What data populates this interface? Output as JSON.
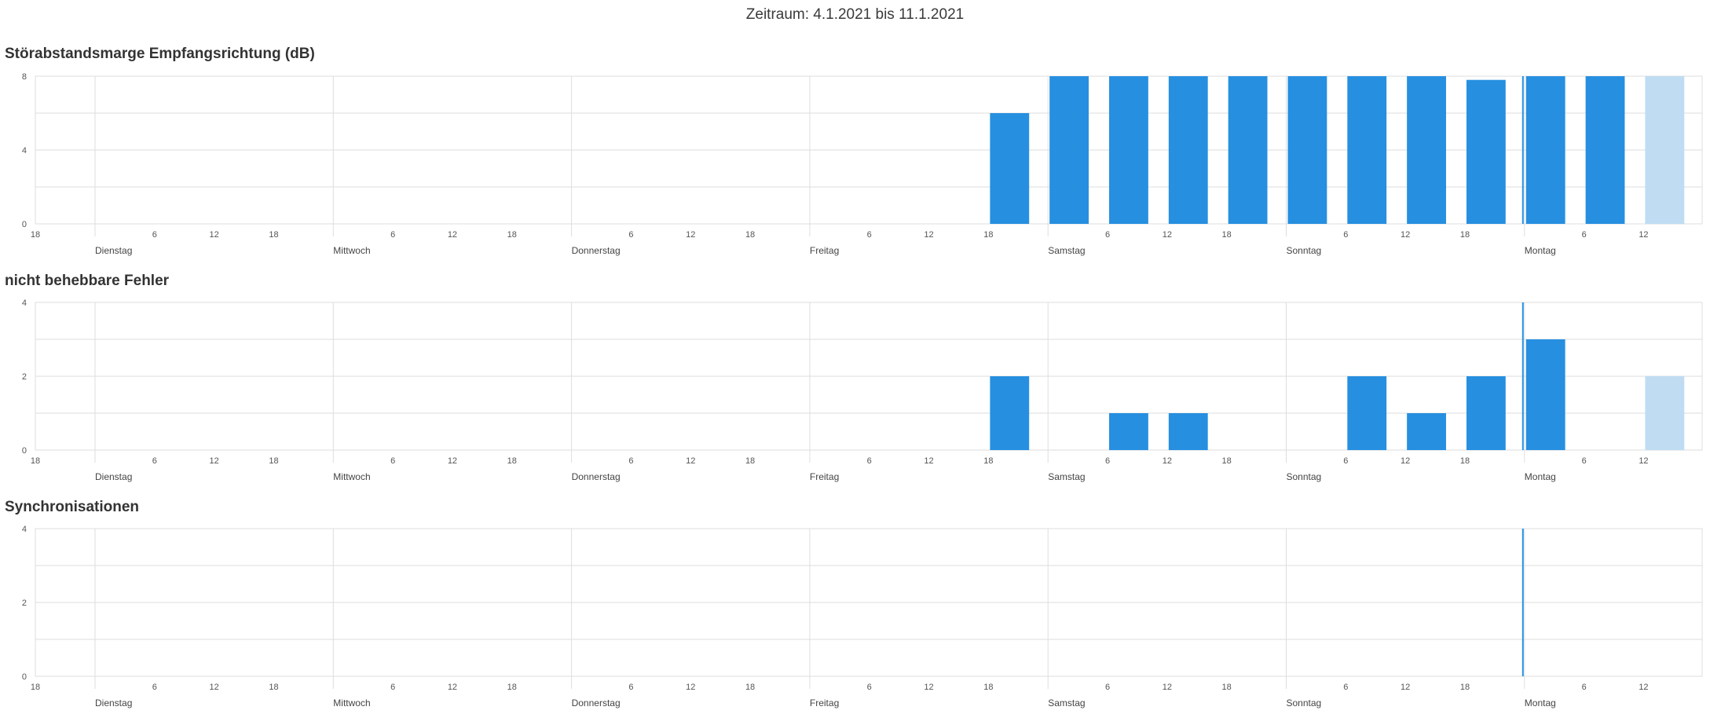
{
  "header": {
    "period": "Zeitraum: 4.1.2021 bis 11.1.2021"
  },
  "colors": {
    "bar": "#268fe0",
    "bar_current": "#bfdcf2",
    "grid": "#dedede",
    "now_line": "#268fe0"
  },
  "x_axis": {
    "hour_ticks": [
      "18",
      "6",
      "12",
      "18",
      "6",
      "12",
      "18",
      "6",
      "12",
      "18",
      "6",
      "12",
      "18",
      "6",
      "12",
      "18",
      "6",
      "12",
      "18",
      "6",
      "12"
    ],
    "day_labels": [
      "Dienstag",
      "Mittwoch",
      "Donnerstag",
      "Freitag",
      "Samstag",
      "Sonntag",
      "Montag"
    ]
  },
  "chart_data": [
    {
      "type": "bar",
      "title": "Störabstandsmarge Empfangsrichtung (dB)",
      "ylim": [
        0,
        8
      ],
      "yticks": [
        "8",
        "4",
        "0"
      ],
      "bar_width_hours": 6,
      "bars": [
        {
          "start": "Fr 18:00",
          "value": 6
        },
        {
          "start": "Sa 00:00",
          "value": 8
        },
        {
          "start": "Sa 06:00",
          "value": 8
        },
        {
          "start": "Sa 12:00",
          "value": 8
        },
        {
          "start": "Sa 18:00",
          "value": 8
        },
        {
          "start": "So 00:00",
          "value": 8
        },
        {
          "start": "So 06:00",
          "value": 8
        },
        {
          "start": "So 12:00",
          "value": 8
        },
        {
          "start": "So 18:00",
          "value": 7.8
        },
        {
          "start": "Mo 00:00",
          "value": 8
        },
        {
          "start": "Mo 06:00",
          "value": 8
        },
        {
          "start": "Mo 12:00",
          "value": 8,
          "current": true
        }
      ],
      "now_marker": true
    },
    {
      "type": "bar",
      "title": "nicht behebbare Fehler",
      "ylim": [
        0,
        4
      ],
      "yticks": [
        "4",
        "2",
        "0"
      ],
      "bar_width_hours": 6,
      "bars": [
        {
          "start": "Fr 18:00",
          "value": 2
        },
        {
          "start": "Sa 06:00",
          "value": 1
        },
        {
          "start": "Sa 12:00",
          "value": 1
        },
        {
          "start": "So 06:00",
          "value": 2
        },
        {
          "start": "So 12:00",
          "value": 1
        },
        {
          "start": "So 18:00",
          "value": 2
        },
        {
          "start": "Mo 00:00",
          "value": 3
        },
        {
          "start": "Mo 12:00",
          "value": 2,
          "current": true
        }
      ],
      "now_marker": true
    },
    {
      "type": "bar",
      "title": "Synchronisationen",
      "ylim": [
        0,
        4
      ],
      "yticks": [
        "4",
        "2",
        "0"
      ],
      "bar_width_hours": 6,
      "bars": [],
      "now_marker": true
    }
  ]
}
